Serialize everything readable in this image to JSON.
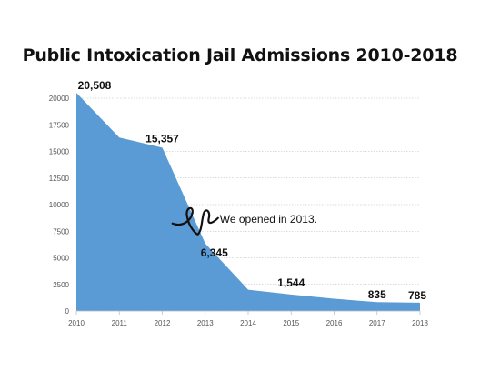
{
  "chart_data": {
    "type": "area",
    "title": "Public Intoxication Jail Admissions 2010-2018",
    "xlabel": "",
    "ylabel": "",
    "categories": [
      "2010",
      "2011",
      "2012",
      "2013",
      "2014",
      "2015",
      "2016",
      "2017",
      "2018"
    ],
    "series": [
      {
        "values": [
          20508,
          16300,
          15357,
          6345,
          2000,
          1544,
          1150,
          835,
          785
        ]
      }
    ],
    "ylim": [
      0,
      20000
    ],
    "yticks": [
      "0",
      "2500",
      "5000",
      "7500",
      "10000",
      "12500",
      "15000",
      "17500",
      "20000"
    ],
    "data_labels": [
      {
        "index": 0,
        "text": "20,508"
      },
      {
        "index": 2,
        "text": "15,357"
      },
      {
        "index": 3,
        "text": "6,345"
      },
      {
        "index": 5,
        "text": "1,544"
      },
      {
        "index": 7,
        "text": "835"
      },
      {
        "index": 8,
        "text": "785"
      }
    ],
    "annotation": {
      "text": "We opened in 2013.",
      "at": "2013"
    },
    "grid": true,
    "fill_color": "#5b9bd5",
    "grid_color": "#b8b8b8"
  }
}
